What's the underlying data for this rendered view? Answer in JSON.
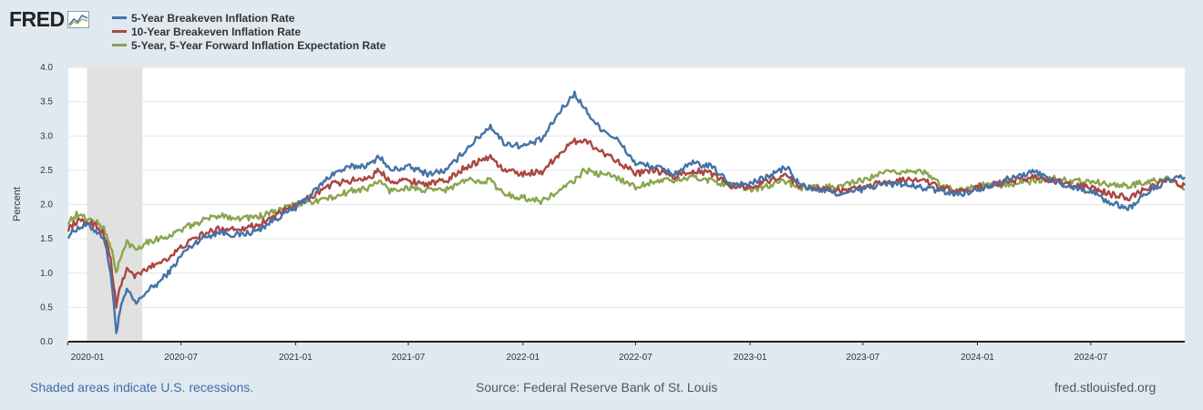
{
  "brand": {
    "logo_text": "FRED"
  },
  "footer": {
    "recession_note": "Shaded areas indicate U.S. recessions.",
    "source": "Source: Federal Reserve Bank of St. Louis",
    "site": "fred.stlouisfed.org"
  },
  "chart_data": {
    "type": "line",
    "title": "",
    "xlabel": "",
    "ylabel": "Percent",
    "ylim": [
      0.0,
      4.0
    ],
    "yticks": [
      "0.0",
      "0.5",
      "1.0",
      "1.5",
      "2.0",
      "2.5",
      "3.0",
      "3.5",
      "4.0"
    ],
    "xrange": [
      "2020-01-02",
      "2024-11-29"
    ],
    "xticks": [
      {
        "date": "2020-01-01",
        "label": "2020-01"
      },
      {
        "date": "2020-07-01",
        "label": "2020-07"
      },
      {
        "date": "2021-01-01",
        "label": "2021-01"
      },
      {
        "date": "2021-07-01",
        "label": "2021-07"
      },
      {
        "date": "2022-01-01",
        "label": "2022-01"
      },
      {
        "date": "2022-07-01",
        "label": "2022-07"
      },
      {
        "date": "2023-01-01",
        "label": "2023-01"
      },
      {
        "date": "2023-07-01",
        "label": "2023-07"
      },
      {
        "date": "2024-01-01",
        "label": "2024-01"
      },
      {
        "date": "2024-07-01",
        "label": "2024-07"
      }
    ],
    "recessions": [
      {
        "start": "2020-02-01",
        "end": "2020-04-30"
      }
    ],
    "series": [
      {
        "name": "5-Year Breakeven Inflation Rate",
        "color": "#4572a7",
        "points": [
          [
            "2020-01-02",
            1.55
          ],
          [
            "2020-01-15",
            1.65
          ],
          [
            "2020-02-01",
            1.7
          ],
          [
            "2020-02-15",
            1.62
          ],
          [
            "2020-02-28",
            1.52
          ],
          [
            "2020-03-10",
            1.0
          ],
          [
            "2020-03-19",
            0.14
          ],
          [
            "2020-03-25",
            0.45
          ],
          [
            "2020-04-05",
            0.75
          ],
          [
            "2020-04-20",
            0.55
          ],
          [
            "2020-05-05",
            0.72
          ],
          [
            "2020-05-25",
            0.85
          ],
          [
            "2020-06-15",
            1.05
          ],
          [
            "2020-07-05",
            1.3
          ],
          [
            "2020-08-01",
            1.5
          ],
          [
            "2020-09-01",
            1.6
          ],
          [
            "2020-10-01",
            1.55
          ],
          [
            "2020-11-01",
            1.62
          ],
          [
            "2020-12-01",
            1.8
          ],
          [
            "2021-01-01",
            1.95
          ],
          [
            "2021-02-01",
            2.2
          ],
          [
            "2021-03-01",
            2.45
          ],
          [
            "2021-04-01",
            2.55
          ],
          [
            "2021-05-01",
            2.58
          ],
          [
            "2021-05-15",
            2.72
          ],
          [
            "2021-06-01",
            2.5
          ],
          [
            "2021-07-01",
            2.55
          ],
          [
            "2021-08-01",
            2.45
          ],
          [
            "2021-09-01",
            2.5
          ],
          [
            "2021-10-01",
            2.8
          ],
          [
            "2021-11-10",
            3.15
          ],
          [
            "2021-12-01",
            2.9
          ],
          [
            "2022-01-01",
            2.85
          ],
          [
            "2022-02-01",
            2.95
          ],
          [
            "2022-03-01",
            3.35
          ],
          [
            "2022-03-25",
            3.62
          ],
          [
            "2022-04-10",
            3.4
          ],
          [
            "2022-05-01",
            3.15
          ],
          [
            "2022-06-01",
            2.95
          ],
          [
            "2022-07-01",
            2.6
          ],
          [
            "2022-08-01",
            2.55
          ],
          [
            "2022-09-01",
            2.45
          ],
          [
            "2022-10-01",
            2.6
          ],
          [
            "2022-11-01",
            2.55
          ],
          [
            "2022-12-01",
            2.3
          ],
          [
            "2023-01-01",
            2.3
          ],
          [
            "2023-02-01",
            2.42
          ],
          [
            "2023-03-01",
            2.55
          ],
          [
            "2023-03-15",
            2.35
          ],
          [
            "2023-04-01",
            2.25
          ],
          [
            "2023-05-01",
            2.2
          ],
          [
            "2023-06-01",
            2.15
          ],
          [
            "2023-07-01",
            2.22
          ],
          [
            "2023-08-01",
            2.3
          ],
          [
            "2023-09-01",
            2.3
          ],
          [
            "2023-10-01",
            2.25
          ],
          [
            "2023-11-01",
            2.2
          ],
          [
            "2023-12-01",
            2.15
          ],
          [
            "2024-01-01",
            2.22
          ],
          [
            "2024-02-01",
            2.32
          ],
          [
            "2024-03-01",
            2.4
          ],
          [
            "2024-04-01",
            2.48
          ],
          [
            "2024-05-01",
            2.35
          ],
          [
            "2024-06-01",
            2.25
          ],
          [
            "2024-07-01",
            2.2
          ],
          [
            "2024-08-01",
            2.02
          ],
          [
            "2024-09-01",
            1.95
          ],
          [
            "2024-10-01",
            2.18
          ],
          [
            "2024-11-01",
            2.35
          ],
          [
            "2024-11-29",
            2.4
          ]
        ]
      },
      {
        "name": "10-Year Breakeven Inflation Rate",
        "color": "#aa4643",
        "points": [
          [
            "2020-01-02",
            1.65
          ],
          [
            "2020-01-15",
            1.75
          ],
          [
            "2020-02-01",
            1.75
          ],
          [
            "2020-02-15",
            1.7
          ],
          [
            "2020-02-28",
            1.58
          ],
          [
            "2020-03-10",
            1.2
          ],
          [
            "2020-03-19",
            0.5
          ],
          [
            "2020-03-25",
            0.8
          ],
          [
            "2020-04-05",
            1.05
          ],
          [
            "2020-04-20",
            0.95
          ],
          [
            "2020-05-05",
            1.05
          ],
          [
            "2020-05-25",
            1.15
          ],
          [
            "2020-06-15",
            1.25
          ],
          [
            "2020-07-05",
            1.4
          ],
          [
            "2020-08-01",
            1.55
          ],
          [
            "2020-09-01",
            1.65
          ],
          [
            "2020-10-01",
            1.65
          ],
          [
            "2020-11-01",
            1.7
          ],
          [
            "2020-12-01",
            1.85
          ],
          [
            "2021-01-01",
            1.98
          ],
          [
            "2021-02-01",
            2.15
          ],
          [
            "2021-03-01",
            2.3
          ],
          [
            "2021-04-01",
            2.35
          ],
          [
            "2021-05-01",
            2.4
          ],
          [
            "2021-05-15",
            2.5
          ],
          [
            "2021-06-01",
            2.35
          ],
          [
            "2021-07-01",
            2.35
          ],
          [
            "2021-08-01",
            2.3
          ],
          [
            "2021-09-01",
            2.35
          ],
          [
            "2021-10-01",
            2.55
          ],
          [
            "2021-11-10",
            2.7
          ],
          [
            "2021-12-01",
            2.5
          ],
          [
            "2022-01-01",
            2.45
          ],
          [
            "2022-02-01",
            2.48
          ],
          [
            "2022-03-01",
            2.75
          ],
          [
            "2022-03-25",
            2.92
          ],
          [
            "2022-04-10",
            2.95
          ],
          [
            "2022-05-01",
            2.8
          ],
          [
            "2022-06-01",
            2.65
          ],
          [
            "2022-07-01",
            2.45
          ],
          [
            "2022-08-01",
            2.5
          ],
          [
            "2022-09-01",
            2.4
          ],
          [
            "2022-10-01",
            2.5
          ],
          [
            "2022-11-01",
            2.45
          ],
          [
            "2022-12-01",
            2.28
          ],
          [
            "2023-01-01",
            2.25
          ],
          [
            "2023-02-01",
            2.35
          ],
          [
            "2023-03-01",
            2.45
          ],
          [
            "2023-03-15",
            2.3
          ],
          [
            "2023-04-01",
            2.25
          ],
          [
            "2023-05-01",
            2.22
          ],
          [
            "2023-06-01",
            2.2
          ],
          [
            "2023-07-01",
            2.25
          ],
          [
            "2023-08-01",
            2.32
          ],
          [
            "2023-09-01",
            2.35
          ],
          [
            "2023-10-01",
            2.38
          ],
          [
            "2023-11-01",
            2.25
          ],
          [
            "2023-12-01",
            2.18
          ],
          [
            "2024-01-01",
            2.25
          ],
          [
            "2024-02-01",
            2.3
          ],
          [
            "2024-03-01",
            2.35
          ],
          [
            "2024-04-01",
            2.4
          ],
          [
            "2024-05-01",
            2.35
          ],
          [
            "2024-06-01",
            2.28
          ],
          [
            "2024-07-01",
            2.25
          ],
          [
            "2024-08-01",
            2.15
          ],
          [
            "2024-09-01",
            2.1
          ],
          [
            "2024-10-01",
            2.25
          ],
          [
            "2024-11-01",
            2.35
          ],
          [
            "2024-11-29",
            2.28
          ]
        ]
      },
      {
        "name": "5-Year, 5-Year Forward Inflation Expectation Rate",
        "color": "#89a54e",
        "points": [
          [
            "2020-01-02",
            1.75
          ],
          [
            "2020-01-15",
            1.85
          ],
          [
            "2020-02-01",
            1.8
          ],
          [
            "2020-02-15",
            1.75
          ],
          [
            "2020-02-28",
            1.65
          ],
          [
            "2020-03-10",
            1.4
          ],
          [
            "2020-03-19",
            1.0
          ],
          [
            "2020-03-25",
            1.2
          ],
          [
            "2020-04-05",
            1.45
          ],
          [
            "2020-04-20",
            1.35
          ],
          [
            "2020-05-05",
            1.45
          ],
          [
            "2020-05-25",
            1.5
          ],
          [
            "2020-06-15",
            1.55
          ],
          [
            "2020-07-05",
            1.65
          ],
          [
            "2020-08-01",
            1.75
          ],
          [
            "2020-09-01",
            1.85
          ],
          [
            "2020-10-01",
            1.8
          ],
          [
            "2020-11-01",
            1.82
          ],
          [
            "2020-12-01",
            1.9
          ],
          [
            "2021-01-01",
            2.0
          ],
          [
            "2021-02-01",
            2.05
          ],
          [
            "2021-03-01",
            2.1
          ],
          [
            "2021-04-01",
            2.2
          ],
          [
            "2021-05-01",
            2.25
          ],
          [
            "2021-05-15",
            2.35
          ],
          [
            "2021-06-01",
            2.2
          ],
          [
            "2021-07-01",
            2.25
          ],
          [
            "2021-08-01",
            2.2
          ],
          [
            "2021-09-01",
            2.22
          ],
          [
            "2021-10-01",
            2.35
          ],
          [
            "2021-11-10",
            2.35
          ],
          [
            "2021-12-01",
            2.15
          ],
          [
            "2022-01-01",
            2.1
          ],
          [
            "2022-02-01",
            2.05
          ],
          [
            "2022-03-01",
            2.2
          ],
          [
            "2022-03-25",
            2.35
          ],
          [
            "2022-04-10",
            2.5
          ],
          [
            "2022-05-01",
            2.45
          ],
          [
            "2022-06-01",
            2.4
          ],
          [
            "2022-07-01",
            2.25
          ],
          [
            "2022-08-01",
            2.35
          ],
          [
            "2022-09-01",
            2.35
          ],
          [
            "2022-10-01",
            2.4
          ],
          [
            "2022-11-01",
            2.35
          ],
          [
            "2022-12-01",
            2.28
          ],
          [
            "2023-01-01",
            2.22
          ],
          [
            "2023-02-01",
            2.28
          ],
          [
            "2023-03-01",
            2.35
          ],
          [
            "2023-03-15",
            2.25
          ],
          [
            "2023-04-01",
            2.25
          ],
          [
            "2023-05-01",
            2.25
          ],
          [
            "2023-06-01",
            2.28
          ],
          [
            "2023-07-01",
            2.35
          ],
          [
            "2023-08-01",
            2.45
          ],
          [
            "2023-09-01",
            2.48
          ],
          [
            "2023-10-01",
            2.5
          ],
          [
            "2023-11-01",
            2.3
          ],
          [
            "2023-12-01",
            2.2
          ],
          [
            "2024-01-01",
            2.28
          ],
          [
            "2024-02-01",
            2.28
          ],
          [
            "2024-03-01",
            2.3
          ],
          [
            "2024-04-01",
            2.35
          ],
          [
            "2024-05-01",
            2.38
          ],
          [
            "2024-06-01",
            2.35
          ],
          [
            "2024-07-01",
            2.35
          ],
          [
            "2024-08-01",
            2.28
          ],
          [
            "2024-09-01",
            2.28
          ],
          [
            "2024-10-01",
            2.33
          ],
          [
            "2024-11-01",
            2.38
          ],
          [
            "2024-11-29",
            2.22
          ]
        ]
      }
    ]
  }
}
